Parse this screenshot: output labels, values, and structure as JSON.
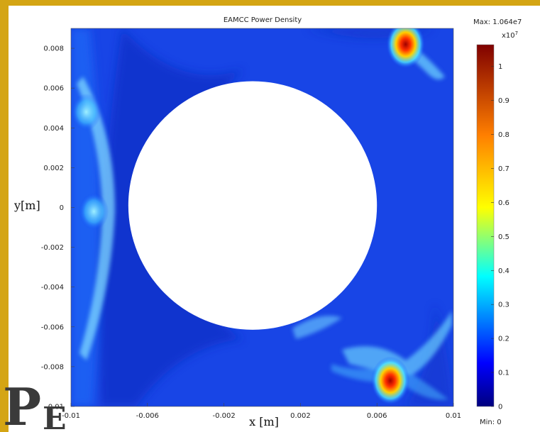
{
  "chart_data": {
    "type": "heatmap",
    "title": "EAMCC Power Density",
    "xlabel": "x [m]",
    "ylabel": "y[m]",
    "xlim": [
      -0.01,
      0.01
    ],
    "ylim": [
      -0.01,
      0.009
    ],
    "x_ticks": [
      "-0.01",
      "-0.006",
      "-0.002",
      "0.002",
      "0.006",
      "0.01"
    ],
    "x_tick_values": [
      -0.01,
      -0.006,
      -0.002,
      0.002,
      0.006,
      0.01
    ],
    "y_ticks": [
      "0.008",
      "0.006",
      "0.004",
      "0.002",
      "0",
      "-0.002",
      "-0.004",
      "-0.006",
      "-0.008",
      "-0.01"
    ],
    "y_tick_values": [
      0.008,
      0.006,
      0.004,
      0.002,
      0,
      -0.002,
      -0.004,
      -0.006,
      -0.008,
      -0.01
    ],
    "colorbar": {
      "max_label": "Max: 1.064e7",
      "min_label": "Min: 0",
      "exponent_label": "x10",
      "exponent_power": "7",
      "range": [
        0,
        1.064
      ],
      "ticks": [
        "1",
        "0.9",
        "0.8",
        "0.7",
        "0.6",
        "0.5",
        "0.4",
        "0.3",
        "0.2",
        "0.1",
        "0"
      ],
      "tick_values": [
        1,
        0.9,
        0.8,
        0.7,
        0.6,
        0.5,
        0.4,
        0.3,
        0.2,
        0.1,
        0
      ]
    },
    "hole": {
      "center_x": -0.0005,
      "center_y": 0.0001,
      "radius": 0.0065
    },
    "background_level": 0.12,
    "hotspots": [
      {
        "x": 0.0075,
        "y": 0.0082,
        "value": 1.0
      },
      {
        "x": 0.0067,
        "y": -0.0087,
        "value": 0.9
      },
      {
        "x": -0.0092,
        "y": 0.0048,
        "value": 0.3
      },
      {
        "x": -0.0088,
        "y": -0.0002,
        "value": 0.28
      }
    ]
  },
  "corner_logo": {
    "main": "P",
    "sub": "E"
  }
}
